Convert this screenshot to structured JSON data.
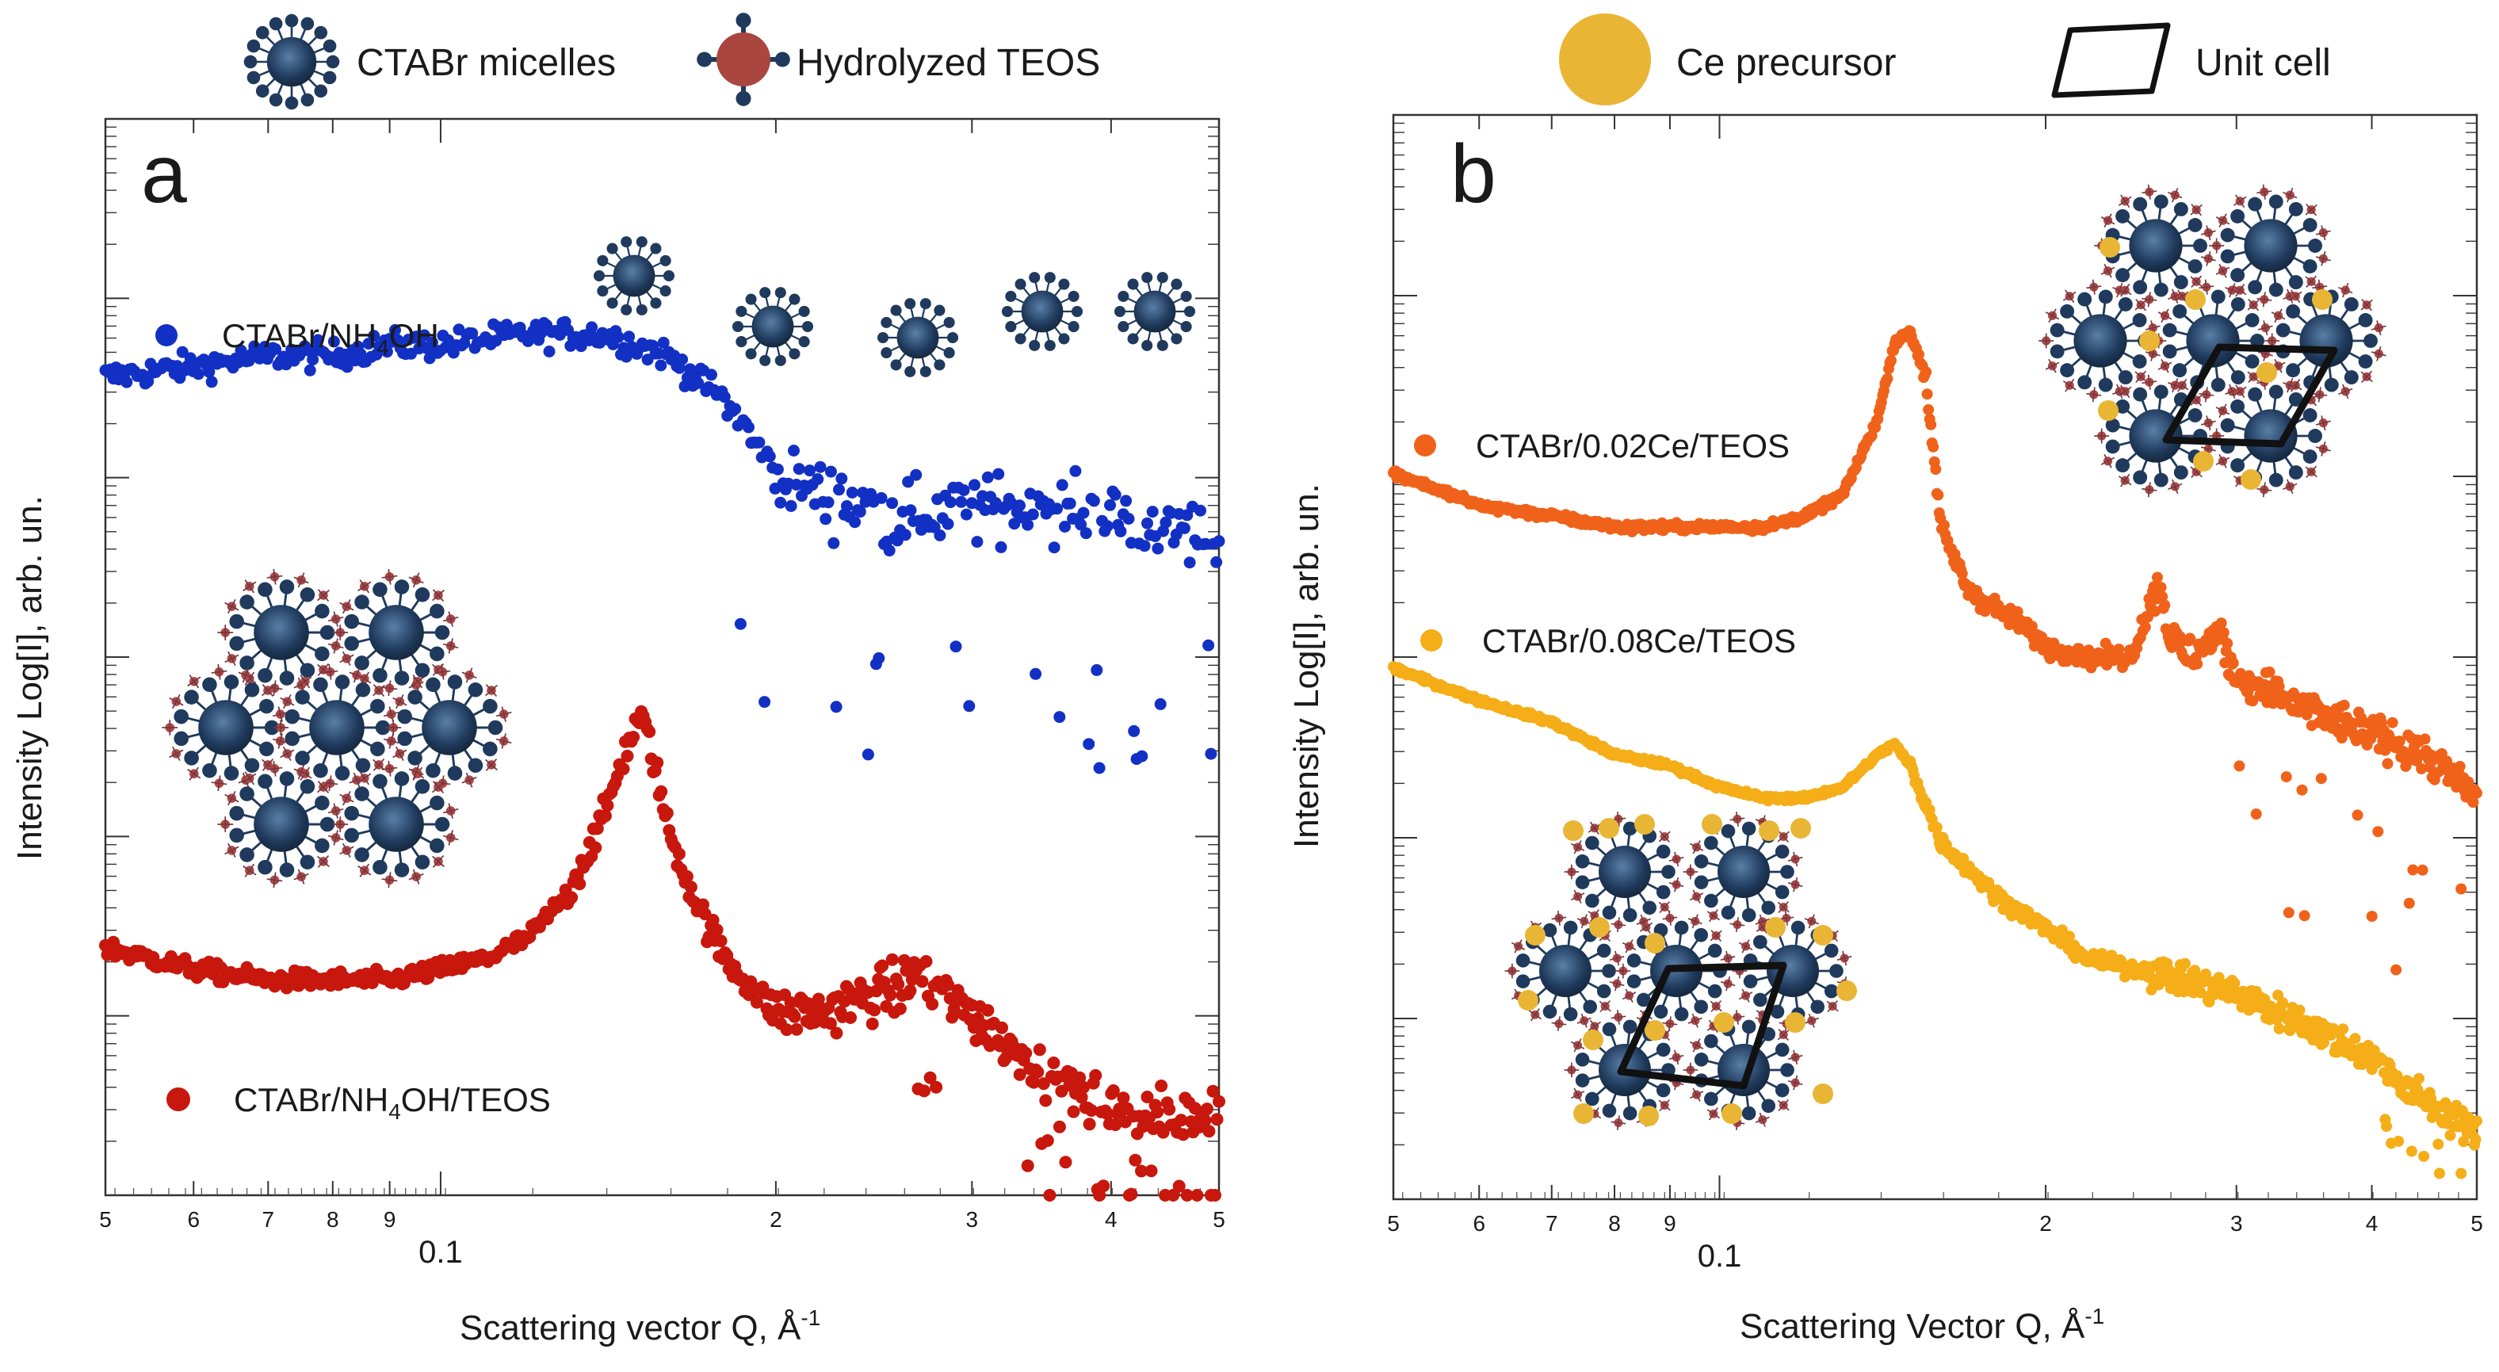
{
  "legend": {
    "items": [
      {
        "label": "CTABr micelles",
        "icon": "micelle-icon"
      },
      {
        "label": "Hydrolyzed TEOS",
        "icon": "teos-icon"
      },
      {
        "label": "Ce precursor",
        "icon": "ce-precursor-icon"
      },
      {
        "label": "Unit cell",
        "icon": "unit-cell-icon"
      }
    ]
  },
  "colors": {
    "micelle_blue": "#1f3a5c",
    "teos_red": "#b5473f",
    "ce_yellow": "#e8b535",
    "blue_series": "#1330c4",
    "red_series": "#c8170c",
    "orange_series": "#f0621a",
    "yellow_series": "#f5ad18"
  },
  "chart_data": [
    {
      "type": "scatter",
      "panel": "a",
      "title": "",
      "xlabel": "Scattering vector Q, Å",
      "xlabel_sup": "-1",
      "ylabel": "Intensity Log[I], arb. un.",
      "xscale": "log",
      "xlim": [
        0.05,
        0.5
      ],
      "major_tick_label": "0.1",
      "tick_labels": [
        "5",
        "6",
        "7",
        "8",
        "9",
        "2",
        "3",
        "4",
        "5"
      ],
      "series": [
        {
          "name": "CTABr/NH4OH",
          "name_main": "CTABr/NH",
          "name_sub": "4",
          "name_tail": "OH",
          "color": "#1330c4",
          "x": [
            0.05,
            0.06,
            0.07,
            0.08,
            0.09,
            0.1,
            0.12,
            0.14,
            0.16,
            0.18,
            0.2,
            0.25,
            0.3,
            0.35,
            0.4,
            0.45,
            0.5
          ],
          "y": [
            0.76,
            0.77,
            0.78,
            0.78,
            0.79,
            0.79,
            0.8,
            0.8,
            0.78,
            0.74,
            0.67,
            0.63,
            0.64,
            0.64,
            0.63,
            0.62,
            0.61
          ]
        },
        {
          "name": "CTABr/NH4OH/TEOS",
          "name_main": "CTABr/NH",
          "name_sub": "4",
          "name_tail": "OH/TEOS",
          "color": "#c8170c",
          "x": [
            0.05,
            0.06,
            0.07,
            0.08,
            0.09,
            0.1,
            0.11,
            0.12,
            0.13,
            0.14,
            0.145,
            0.15,
            0.152,
            0.155,
            0.16,
            0.17,
            0.18,
            0.2,
            0.22,
            0.25,
            0.27,
            0.3,
            0.35,
            0.4,
            0.45,
            0.5
          ],
          "y": [
            0.23,
            0.21,
            0.2,
            0.2,
            0.2,
            0.21,
            0.22,
            0.24,
            0.28,
            0.35,
            0.4,
            0.44,
            0.44,
            0.41,
            0.34,
            0.27,
            0.22,
            0.17,
            0.17,
            0.19,
            0.2,
            0.17,
            0.11,
            0.08,
            0.07,
            0.08
          ]
        }
      ],
      "annotations": [
        "a"
      ]
    },
    {
      "type": "scatter",
      "panel": "b",
      "title": "",
      "xlabel": "Scattering Vector Q, Å",
      "xlabel_sup": "-1",
      "ylabel": "Intensity Log[I], arb. un.",
      "xscale": "log",
      "xlim": [
        0.05,
        0.5
      ],
      "major_tick_label": "0.1",
      "tick_labels": [
        "5",
        "6",
        "7",
        "8",
        "9",
        "2",
        "3",
        "4",
        "5"
      ],
      "series": [
        {
          "name": "CTABr/0.02Ce/TEOS",
          "color": "#f0621a",
          "x": [
            0.05,
            0.06,
            0.07,
            0.08,
            0.09,
            0.1,
            0.11,
            0.12,
            0.13,
            0.14,
            0.145,
            0.15,
            0.155,
            0.16,
            0.17,
            0.19,
            0.2,
            0.22,
            0.24,
            0.25,
            0.255,
            0.26,
            0.27,
            0.29,
            0.3,
            0.32,
            0.35,
            0.4,
            0.45,
            0.5
          ],
          "y": [
            0.67,
            0.64,
            0.63,
            0.62,
            0.62,
            0.62,
            0.62,
            0.63,
            0.65,
            0.72,
            0.79,
            0.8,
            0.76,
            0.62,
            0.56,
            0.53,
            0.51,
            0.5,
            0.5,
            0.55,
            0.57,
            0.52,
            0.5,
            0.52,
            0.48,
            0.47,
            0.45,
            0.43,
            0.41,
            0.37
          ]
        },
        {
          "name": "CTABr/0.08Ce/TEOS",
          "color": "#f5ad18",
          "x": [
            0.05,
            0.06,
            0.07,
            0.08,
            0.09,
            0.1,
            0.11,
            0.12,
            0.13,
            0.14,
            0.145,
            0.15,
            0.16,
            0.18,
            0.2,
            0.22,
            0.25,
            0.3,
            0.35,
            0.4,
            0.45,
            0.5
          ],
          "y": [
            0.49,
            0.46,
            0.44,
            0.41,
            0.4,
            0.38,
            0.37,
            0.37,
            0.38,
            0.41,
            0.42,
            0.4,
            0.33,
            0.28,
            0.25,
            0.22,
            0.21,
            0.19,
            0.16,
            0.13,
            0.09,
            0.06
          ]
        }
      ],
      "annotations": [
        "b"
      ]
    }
  ]
}
